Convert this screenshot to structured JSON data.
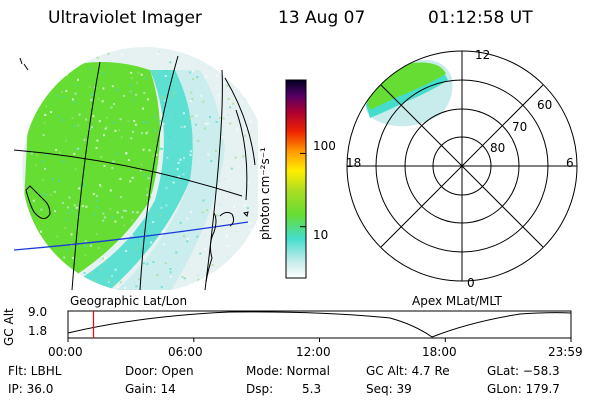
{
  "header": {
    "title": "Ultraviolet Imager",
    "date": "13 Aug 07",
    "time": "01:12:58 UT"
  },
  "left_panel": {
    "caption": "Geographic Lat/Lon"
  },
  "right_panel": {
    "caption": "Apex MLat/MLT",
    "mlt_labels": [
      "12",
      "18",
      "6",
      "0"
    ],
    "mlat_labels": [
      "60",
      "70",
      "80"
    ]
  },
  "colorbar": {
    "unit_label": "photon cm⁻²s⁻¹",
    "tick_labels": [
      "100",
      "10"
    ],
    "ticks": [
      100,
      10
    ],
    "range": [
      2,
      1000
    ],
    "scale": "log"
  },
  "altitude_plot": {
    "ylabel": "GC Alt",
    "ytick_labels": [
      "9.0",
      "1.8"
    ],
    "xtick_labels": [
      "00:00",
      "06:00",
      "12:00",
      "18:00",
      "23:59"
    ],
    "cursor_time_hours": 1.216,
    "cursor_color": "#ff0000"
  },
  "info": {
    "flt": "Flt: LBHL",
    "ip": "IP: 36.0",
    "door": "Door: Open",
    "gain": "Gain: 14",
    "mode": "Mode: Normal",
    "dsp_label": "Dsp:",
    "dsp_value": "5.3",
    "gcalt": "GC Alt: 4.7 Re",
    "seq": "Seq: 39",
    "glat": "GLat: −58.3",
    "glon": "GLon: 179.7"
  },
  "colors": {
    "aurora_green": "#66dd33",
    "aurora_cyan": "#44ddcc",
    "aurora_pale": "#c8ecec",
    "equator_line": "#1a3adc"
  }
}
